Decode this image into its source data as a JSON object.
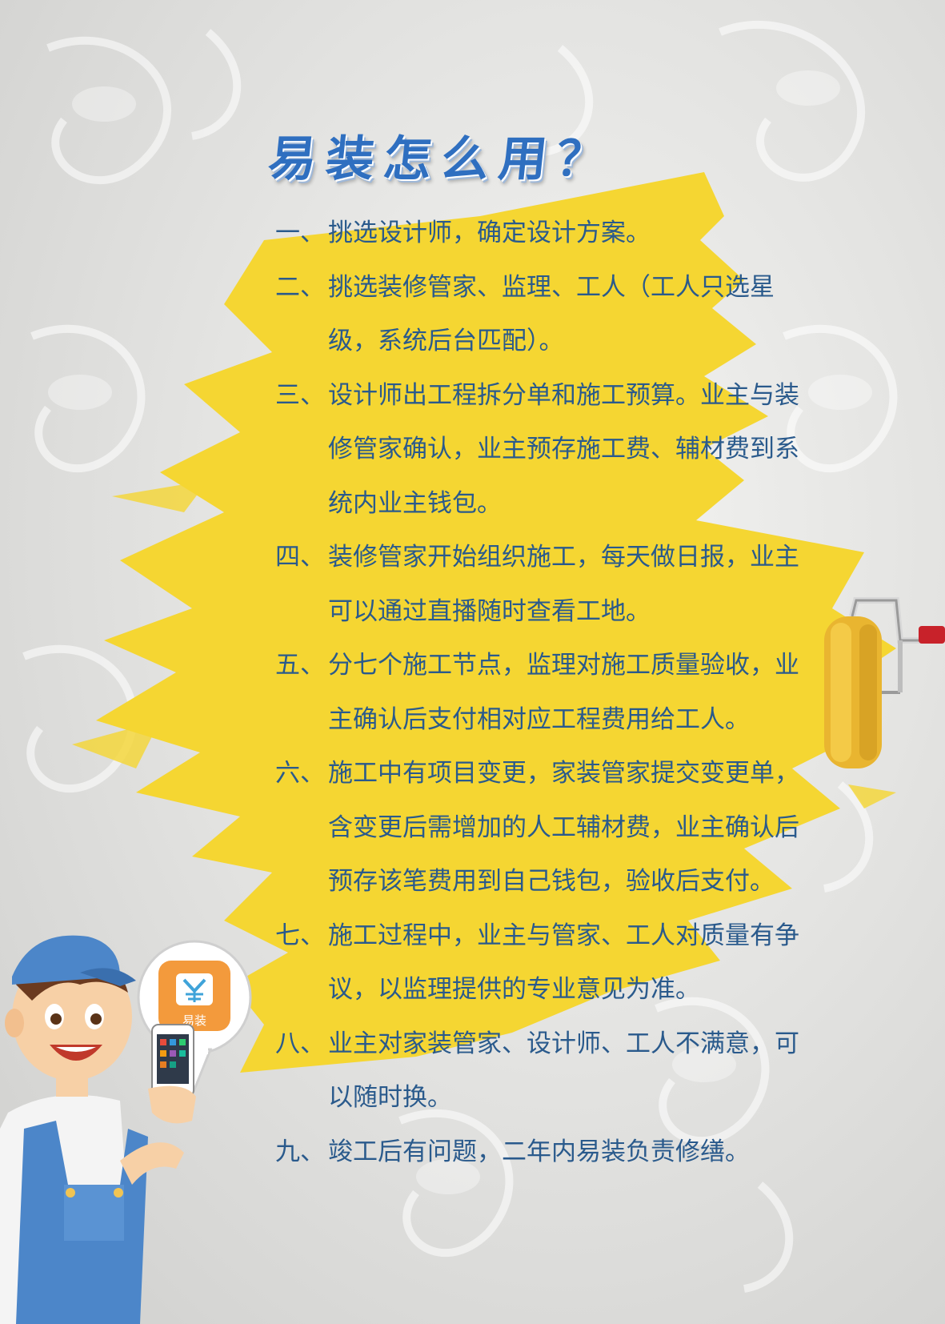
{
  "title": "易装怎么用？",
  "app": {
    "label": "易装"
  },
  "steps": [
    {
      "num": "一、",
      "text": "挑选设计师，确定设计方案。"
    },
    {
      "num": "二、",
      "text": "挑选装修管家、监理、工人（工人只选星级，系统后台匹配）。"
    },
    {
      "num": "三、",
      "text": "设计师出工程拆分单和施工预算。业主与装修管家确认，业主预存施工费、辅材费到系统内业主钱包。"
    },
    {
      "num": "四、",
      "text": "装修管家开始组织施工，每天做日报，业主可以通过直播随时查看工地。"
    },
    {
      "num": "五、",
      "text": "分七个施工节点，监理对施工质量验收，业主确认后支付相对应工程费用给工人。"
    },
    {
      "num": "六、",
      "text": "施工中有项目变更，家装管家提交变更单，含变更后需增加的人工辅材费，业主确认后预存该笔费用到自己钱包，验收后支付。"
    },
    {
      "num": "七、",
      "text": "施工过程中，业主与管家、工人对质量有争议，以监理提供的专业意见为准。"
    },
    {
      "num": "八、",
      "text": "业主对家装管家、设计师、工人不满意，可以随时换。"
    },
    {
      "num": "九、",
      "text": "竣工后有问题，二年内易装负责修缮。"
    }
  ],
  "colors": {
    "title": "#2f6fc0",
    "text": "#2a5a8c",
    "paint": "#f5d632",
    "app_orange": "#f39a3c",
    "shirt_blue": "#4c86c9"
  },
  "icons": {
    "roller": "paint-roller-icon",
    "worker": "worker-illustration",
    "app": "yizhuang-app-icon"
  }
}
